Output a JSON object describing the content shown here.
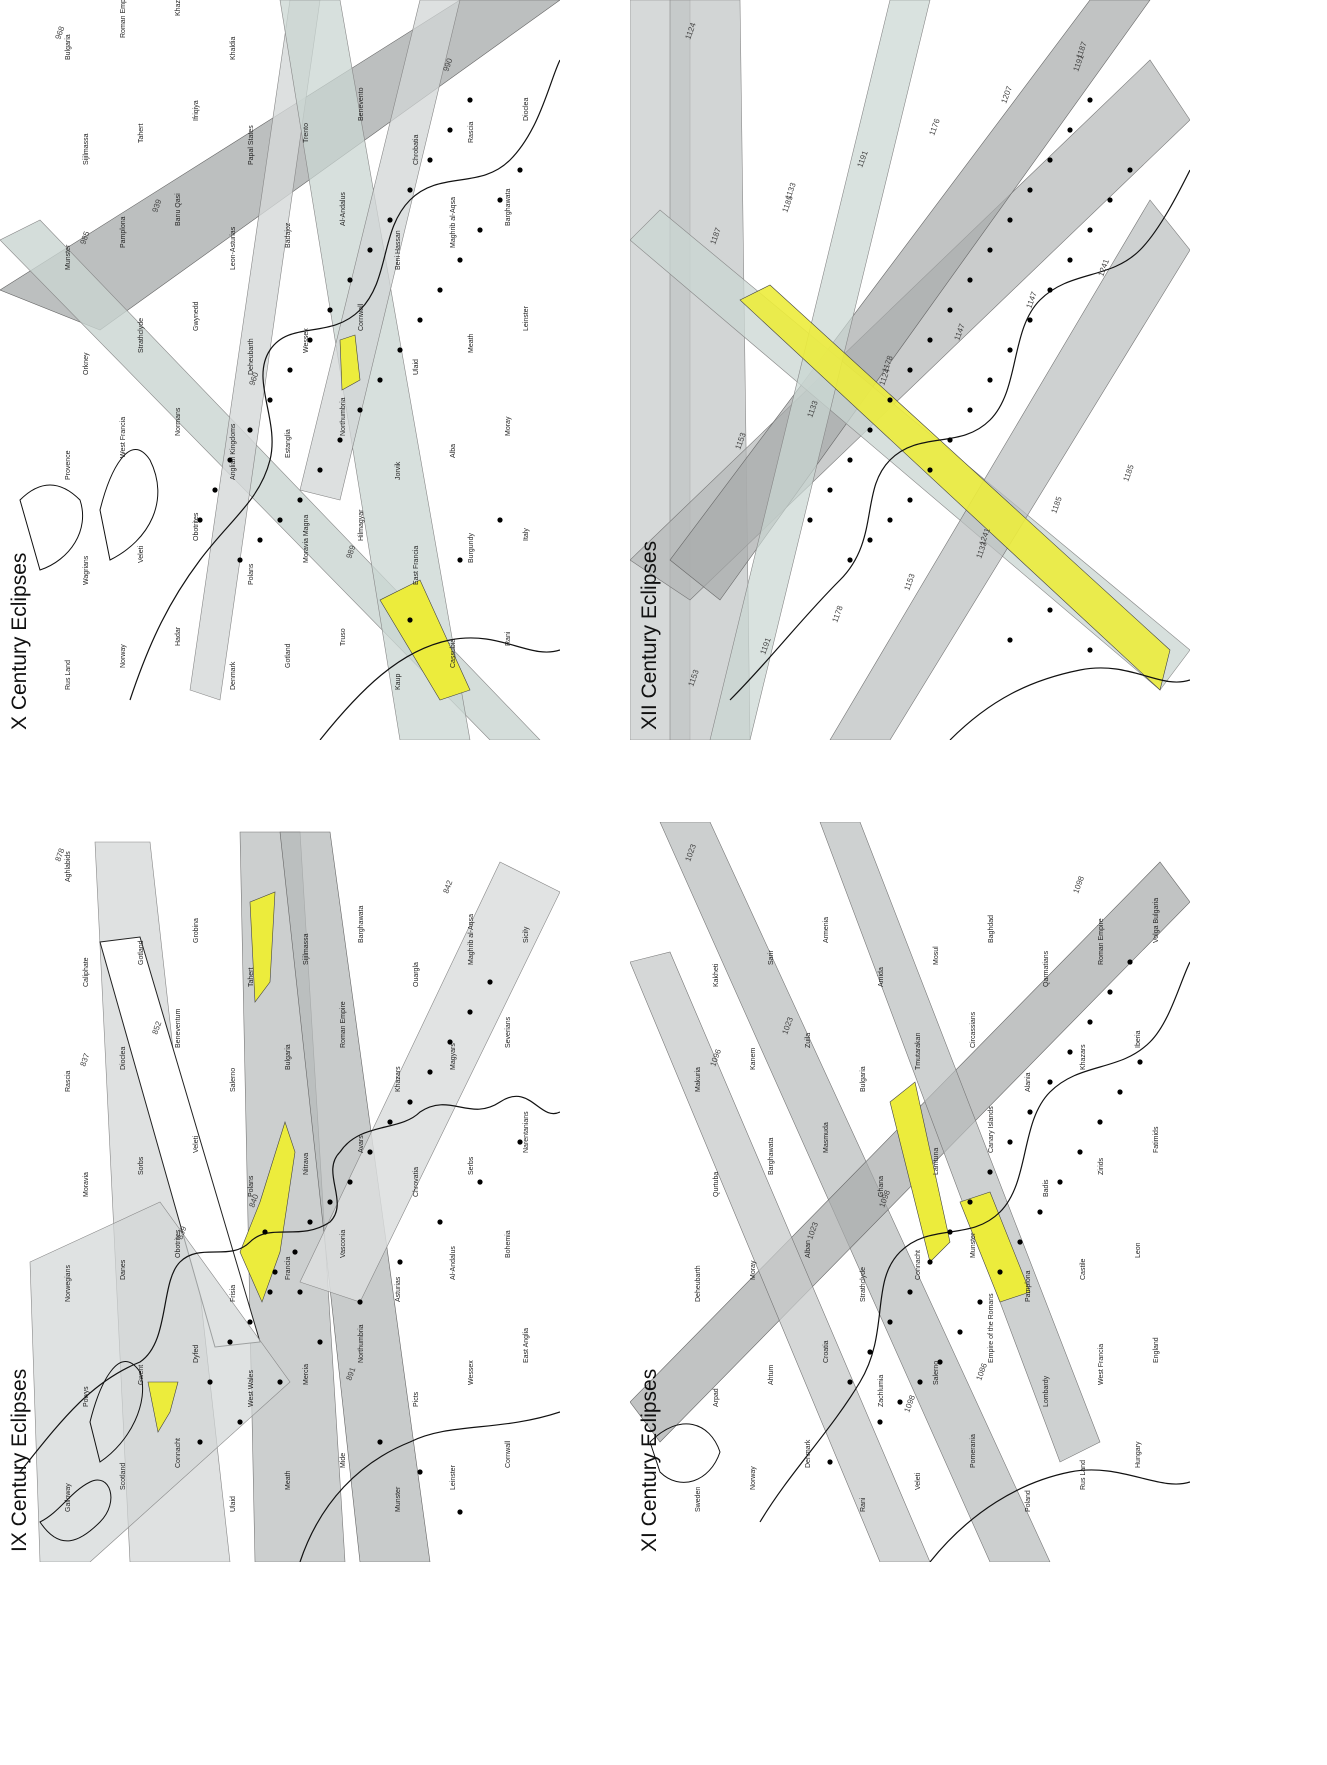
{
  "colors": {
    "band_light": "#d9dcdc",
    "band_mid": "#bfc3c3",
    "band_dark": "#a6aaaa",
    "band_green": "#c9d5d1",
    "totality": "#ecec3c",
    "coast": "#111111",
    "city": "#000000"
  },
  "panels": [
    {
      "id": "ix",
      "title": "IX Century Eclipses",
      "place_labels": [
        "Galloway",
        "Scotland",
        "Connacht",
        "Ulaid",
        "Meath",
        "Mide",
        "Munster",
        "Leinster",
        "Cornwall",
        "Powys",
        "Gwent",
        "Dyfed",
        "West Wales",
        "Mercia",
        "Northumbria",
        "Picts",
        "Wessex",
        "East Anglia",
        "Norwegians",
        "Danes",
        "Obotrites",
        "Frisia",
        "Francia",
        "Vasconia",
        "Asturias",
        "Al-Andalus",
        "Bohemia",
        "Moravia",
        "Sorbs",
        "Veleti",
        "Polans",
        "Nitrava",
        "Avars",
        "Chrovatia",
        "Serbs",
        "Narentanians",
        "Rascia",
        "Dioclea",
        "Beneventum",
        "Salerno",
        "Bulgaria",
        "Roman Empire",
        "Khazars",
        "Magyars",
        "Severians",
        "Caliphate",
        "Gotland",
        "Grobina",
        "Tahert",
        "Sijilmassa",
        "Barghawata",
        "Ouargla",
        "Maghrib al-Aqsa",
        "Sicily",
        "Aghlabids"
      ],
      "eclipse_years": [
        "878",
        "852",
        "840",
        "891",
        "842",
        "837",
        "839"
      ]
    },
    {
      "id": "x",
      "title": "X Century Eclipses",
      "place_labels": [
        "Rus Land",
        "Norway",
        "Hadar",
        "Denmark",
        "Gotland",
        "Truso",
        "Kaup",
        "Cassubia",
        "Rani",
        "Wagrians",
        "Veleti",
        "Obotrites",
        "Polans",
        "Moravia Magna",
        "Hilmagyar",
        "East Francia",
        "Burgundy",
        "Italy",
        "Provence",
        "West Francia",
        "Normans",
        "Anglian Kingdoms",
        "Estanglia",
        "Northumbria",
        "Jorvik",
        "Alba",
        "Moray",
        "Orkney",
        "Strathclyde",
        "Gwynedd",
        "Deheubarth",
        "Wessex",
        "Cornwall",
        "Ulaid",
        "Meath",
        "Leinster",
        "Munster",
        "Pamplona",
        "Banu Qasi",
        "Leon-Asturias",
        "Badajoz",
        "Al-Andalus",
        "Beni Hassan",
        "Maghrib al-Aqsa",
        "Barghawata",
        "Sijilmassa",
        "Tahert",
        "Ifriqiya",
        "Papal States",
        "Trento",
        "Benevento",
        "Chrobatia",
        "Rascia",
        "Dioclea",
        "Bulgaria",
        "Roman Empire",
        "Khazars",
        "Khaldia"
      ],
      "eclipse_years": [
        "968",
        "939",
        "960",
        "989",
        "990",
        "985"
      ]
    },
    {
      "id": "xi",
      "title": "XI Century Eclipses",
      "place_labels": [
        "Sweden",
        "Norway",
        "Denmark",
        "Rani",
        "Veleti",
        "Pomerania",
        "Poland",
        "Rus Land",
        "Hungary",
        "Arpad",
        "Ahtum",
        "Croatia",
        "Zachlumia",
        "Salerno",
        "Empire of the Romans",
        "Lombardy",
        "West Francia",
        "England",
        "Deheubarth",
        "Moray",
        "Alban",
        "Strathclyde",
        "Connacht",
        "Munster",
        "Pamplona",
        "Castile",
        "Leon",
        "Qurtuba",
        "Barghawata",
        "Masmuda",
        "Ghana",
        "Lamtuna",
        "Canary Islands",
        "Badis",
        "Zirids",
        "Fatimids",
        "Makuria",
        "Kanem",
        "Zuila",
        "Bulgaria",
        "Tmutarakan",
        "Circassians",
        "Alania",
        "Khazars",
        "Iberia",
        "Kakheti",
        "Sarir",
        "Armenia",
        "Amida",
        "Mosul",
        "Baghdad",
        "Qarmatians",
        "Roman Empire",
        "Volga Bulgaria"
      ],
      "eclipse_years": [
        "1023",
        "1023",
        "1098",
        "1086",
        "1098",
        "1096",
        "1023",
        "1098"
      ]
    },
    {
      "id": "xii",
      "title": "XII Century Eclipses",
      "eclipse_years": [
        "1124",
        "1185",
        "1124",
        "1133",
        "1191",
        "1187",
        "1133",
        "1153",
        "1207",
        "1241",
        "1153",
        "1178",
        "1176",
        "1147",
        "1185",
        "1191",
        "1191",
        "1147",
        "1185",
        "1153",
        "1133",
        "1178",
        "1241",
        "1187"
      ]
    }
  ]
}
